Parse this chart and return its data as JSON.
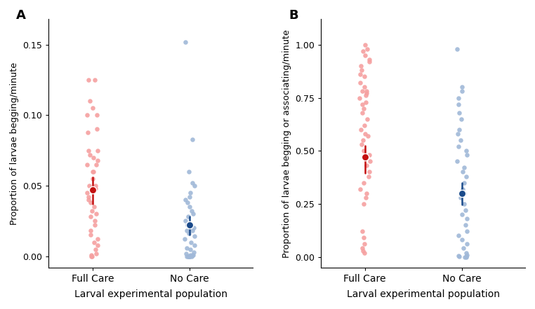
{
  "panel_A": {
    "label": "A",
    "ylabel": "Proportion of larvae begging/minute",
    "xlabel": "Larval experimental population",
    "ylim": [
      -0.008,
      0.168
    ],
    "yticks": [
      0.0,
      0.05,
      0.1,
      0.15
    ],
    "xtick_labels": [
      "Full Care",
      "No Care"
    ],
    "full_care": {
      "y": [
        0.125,
        0.125,
        0.11,
        0.105,
        0.1,
        0.1,
        0.09,
        0.088,
        0.075,
        0.075,
        0.072,
        0.07,
        0.068,
        0.065,
        0.065,
        0.06,
        0.06,
        0.055,
        0.05,
        0.05,
        0.048,
        0.045,
        0.042,
        0.04,
        0.038,
        0.035,
        0.032,
        0.03,
        0.028,
        0.025,
        0.022,
        0.018,
        0.015,
        0.012,
        0.01,
        0.008,
        0.005,
        0.002,
        0.001,
        0.0,
        0.0
      ],
      "mean": 0.047,
      "ci_low": 0.037,
      "ci_high": 0.056,
      "color_scatter": "#f5a0a0",
      "color_mean": "#c41010"
    },
    "no_care": {
      "y": [
        0.152,
        0.083,
        0.06,
        0.052,
        0.05,
        0.045,
        0.042,
        0.04,
        0.038,
        0.035,
        0.032,
        0.03,
        0.028,
        0.025,
        0.022,
        0.02,
        0.018,
        0.016,
        0.014,
        0.012,
        0.01,
        0.008,
        0.006,
        0.005,
        0.003,
        0.002,
        0.001,
        0.001,
        0.0,
        0.0,
        0.0,
        0.0,
        0.0,
        0.0,
        0.0,
        0.001,
        0.018,
        0.022
      ],
      "mean": 0.022,
      "ci_low": 0.015,
      "ci_high": 0.028,
      "color_scatter": "#a0b8d8",
      "color_mean": "#1a4a8a"
    }
  },
  "panel_B": {
    "label": "B",
    "ylabel": "Proportion of larvae begging or associating/minute",
    "xlabel": "Larval experimental population",
    "ylim": [
      -0.05,
      1.12
    ],
    "yticks": [
      0.0,
      0.25,
      0.5,
      0.75,
      1.0
    ],
    "xtick_labels": [
      "Full Care",
      "No Care"
    ],
    "full_care": {
      "y": [
        1.0,
        0.98,
        0.97,
        0.95,
        0.93,
        0.92,
        0.9,
        0.88,
        0.86,
        0.85,
        0.82,
        0.8,
        0.78,
        0.78,
        0.77,
        0.76,
        0.75,
        0.73,
        0.72,
        0.7,
        0.68,
        0.65,
        0.62,
        0.6,
        0.58,
        0.57,
        0.55,
        0.53,
        0.5,
        0.48,
        0.45,
        0.43,
        0.4,
        0.38,
        0.35,
        0.32,
        0.3,
        0.28,
        0.25,
        0.12,
        0.09,
        0.06,
        0.04,
        0.03,
        0.02
      ],
      "mean": 0.47,
      "ci_low": 0.395,
      "ci_high": 0.525,
      "color_scatter": "#f5a0a0",
      "color_mean": "#c41010"
    },
    "no_care": {
      "y": [
        0.98,
        0.8,
        0.78,
        0.75,
        0.72,
        0.68,
        0.65,
        0.6,
        0.58,
        0.55,
        0.52,
        0.5,
        0.48,
        0.45,
        0.42,
        0.4,
        0.38,
        0.35,
        0.32,
        0.3,
        0.28,
        0.25,
        0.22,
        0.2,
        0.18,
        0.15,
        0.12,
        0.1,
        0.08,
        0.06,
        0.04,
        0.02,
        0.01,
        0.005,
        0.003,
        0.001,
        0.0,
        0.0
      ],
      "mean": 0.3,
      "ci_low": 0.245,
      "ci_high": 0.35,
      "color_scatter": "#a0b8d8",
      "color_mean": "#1a4a8a"
    }
  },
  "bg_color": "#ffffff"
}
